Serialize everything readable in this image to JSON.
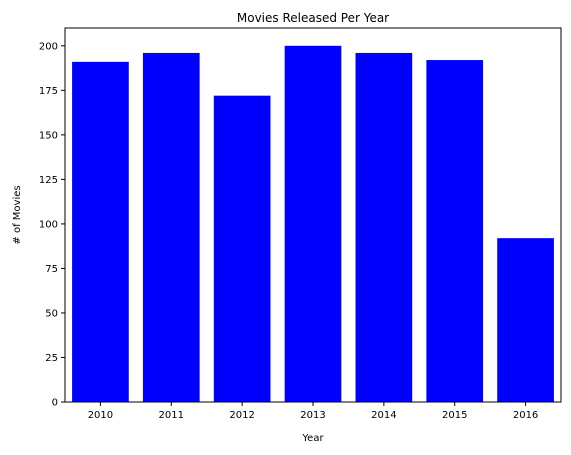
{
  "chart_data": {
    "type": "bar",
    "title": "Movies Released Per Year",
    "xlabel": "Year",
    "ylabel": "# of Movies",
    "categories": [
      "2010",
      "2011",
      "2012",
      "2013",
      "2014",
      "2015",
      "2016"
    ],
    "values": [
      191,
      196,
      172,
      200,
      196,
      192,
      92
    ],
    "ylim": [
      0,
      210
    ],
    "yticks": [
      0,
      25,
      50,
      75,
      100,
      125,
      150,
      175,
      200
    ],
    "bar_color": "#0000ff",
    "grid": false,
    "legend": "none"
  }
}
